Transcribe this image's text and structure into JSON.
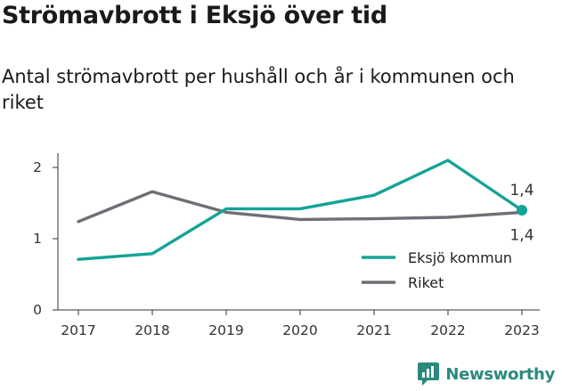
{
  "header": {
    "title": "Strömavbrott i Eksjö över tid",
    "subtitle": "Antal strömavbrott per hushåll och år i kommunen och riket"
  },
  "brand": {
    "name": "Newsworthy",
    "color": "#2a8a7d"
  },
  "chart_data": {
    "type": "line",
    "title": "",
    "xlabel": "",
    "ylabel": "",
    "x": [
      2017,
      2018,
      2019,
      2020,
      2021,
      2022,
      2023
    ],
    "ylim": [
      0,
      2.2
    ],
    "yticks": [
      0,
      1,
      2
    ],
    "grid": false,
    "legend": "bottom-right",
    "series": [
      {
        "name": "Eksjö kommun",
        "color": "#14a396",
        "values": [
          0.71,
          0.79,
          1.42,
          1.42,
          1.61,
          2.1,
          1.4
        ],
        "end_label": "1,4"
      },
      {
        "name": "Riket",
        "color": "#6f6e75",
        "values": [
          1.24,
          1.66,
          1.37,
          1.27,
          1.28,
          1.3,
          1.37
        ],
        "end_label": "1,4"
      }
    ]
  }
}
